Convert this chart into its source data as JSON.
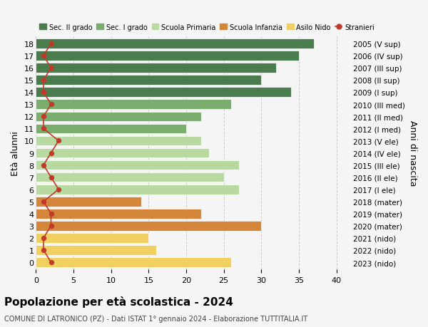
{
  "ages": [
    18,
    17,
    16,
    15,
    14,
    13,
    12,
    11,
    10,
    9,
    8,
    7,
    6,
    5,
    4,
    3,
    2,
    1,
    0
  ],
  "years": [
    "2005 (V sup)",
    "2006 (IV sup)",
    "2007 (III sup)",
    "2008 (II sup)",
    "2009 (I sup)",
    "2010 (III med)",
    "2011 (II med)",
    "2012 (I med)",
    "2013 (V ele)",
    "2014 (IV ele)",
    "2015 (III ele)",
    "2016 (II ele)",
    "2017 (I ele)",
    "2018 (mater)",
    "2019 (mater)",
    "2020 (mater)",
    "2021 (nido)",
    "2022 (nido)",
    "2023 (nido)"
  ],
  "bar_values": [
    37,
    35,
    32,
    30,
    34,
    26,
    22,
    20,
    22,
    23,
    27,
    25,
    27,
    14,
    22,
    30,
    15,
    16,
    26
  ],
  "bar_colors": [
    "#4a7c4e",
    "#4a7c4e",
    "#4a7c4e",
    "#4a7c4e",
    "#4a7c4e",
    "#7aad6e",
    "#7aad6e",
    "#7aad6e",
    "#b8d9a0",
    "#b8d9a0",
    "#b8d9a0",
    "#b8d9a0",
    "#b8d9a0",
    "#d4873a",
    "#d4873a",
    "#d4873a",
    "#f0d060",
    "#f0d060",
    "#f0d060"
  ],
  "stranieri_values": [
    2,
    1,
    2,
    1,
    1,
    2,
    1,
    1,
    3,
    2,
    1,
    2,
    3,
    1,
    2,
    2,
    1,
    1,
    2
  ],
  "title": "Popolazione per età scolastica - 2024",
  "subtitle": "COMUNE DI LATRONICO (PZ) - Dati ISTAT 1° gennaio 2024 - Elaborazione TUTTITALIA.IT",
  "ylabel": "Età alunni",
  "ylabel2": "Anni di nascita",
  "xlim": [
    0,
    42
  ],
  "xticks": [
    0,
    5,
    10,
    15,
    20,
    25,
    30,
    35,
    40
  ],
  "legend_labels": [
    "Sec. II grado",
    "Sec. I grado",
    "Scuola Primaria",
    "Scuola Infanzia",
    "Asilo Nido",
    "Stranieri"
  ],
  "legend_colors": [
    "#4a7c4e",
    "#7aad6e",
    "#b8d9a0",
    "#d4873a",
    "#f0d060",
    "#c0392b"
  ],
  "bg_color": "#f5f5f5",
  "stranieri_color": "#c0392b",
  "grid_color": "#cccccc"
}
